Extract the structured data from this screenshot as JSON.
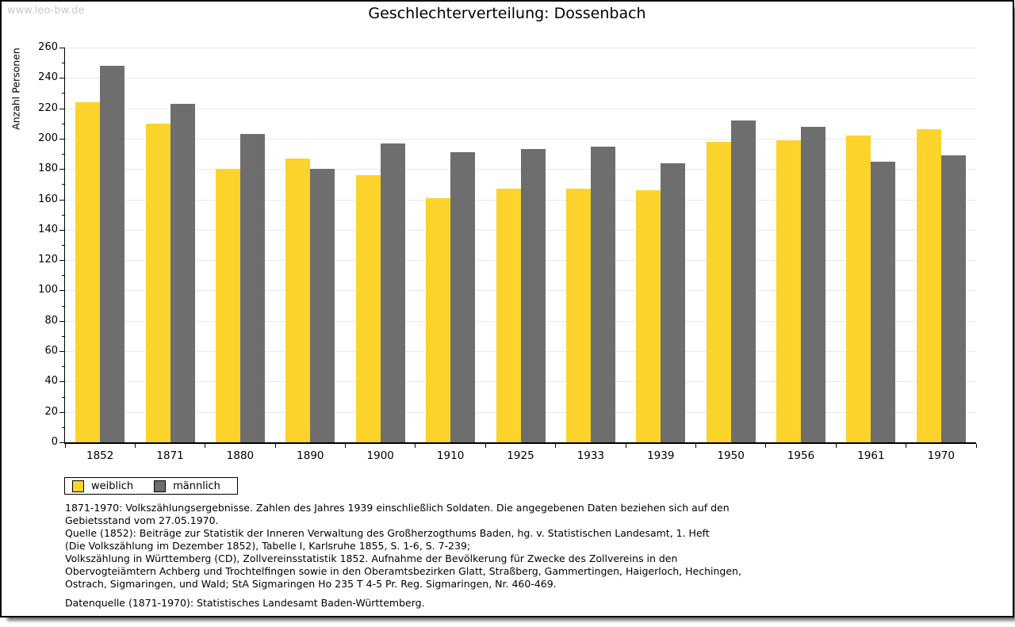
{
  "watermark": "www.leo-bw.de",
  "title": "Geschlechterverteilung: Dossenbach",
  "chart_data": {
    "type": "bar",
    "title": "Geschlechterverteilung: Dossenbach",
    "ylabel": "Anzahl Personen",
    "xlabel": "",
    "categories": [
      "1852",
      "1871",
      "1880",
      "1890",
      "1900",
      "1910",
      "1925",
      "1933",
      "1939",
      "1950",
      "1956",
      "1961",
      "1970"
    ],
    "series": [
      {
        "name": "weiblich",
        "color": "#FBD32B",
        "values": [
          224,
          210,
          180,
          187,
          176,
          161,
          167,
          167,
          166,
          198,
          199,
          202,
          206
        ]
      },
      {
        "name": "männlich",
        "color": "#6E6E6E",
        "values": [
          248,
          223,
          203,
          180,
          197,
          191,
          193,
          195,
          184,
          212,
          208,
          185,
          189
        ]
      }
    ],
    "ylim": [
      0,
      260
    ],
    "ytick_major_step": 20,
    "ytick_minor_step": 10,
    "grid": true,
    "gridline_color": "#e9e9e9",
    "legend_position": "bottom-left"
  },
  "footnotes": {
    "lines": [
      "1871-1970: Volkszählungsergebnisse. Zahlen des Jahres 1939 einschließlich Soldaten. Die angegebenen Daten beziehen sich auf den",
      "Gebietsstand vom 27.05.1970.",
      "Quelle (1852): Beiträge zur Statistik der Inneren Verwaltung des Großherzogthums Baden, hg. v. Statistischen Landesamt, 1. Heft",
      "(Die Volkszählung im Dezember 1852), Tabelle I, Karlsruhe 1855, S. 1-6, S. 7-239;",
      "Volkszählung in Württemberg (CD), Zollvereinsstatistik 1852. Aufnahme der Bevölkerung für Zwecke des Zollvereins in den",
      "Obervogteiämtern Achberg und Trochtelfingen sowie in den Oberamtsbezirken Glatt, Straßberg, Gammertingen, Haigerloch, Hechingen,",
      "Ostrach, Sigmaringen, und Wald; StA Sigmaringen Ho 235 T 4-5 Pr. Reg. Sigmaringen, Nr. 460-469."
    ],
    "datasource": "Datenquelle (1871-1970): Statistisches Landesamt Baden-Württemberg."
  }
}
